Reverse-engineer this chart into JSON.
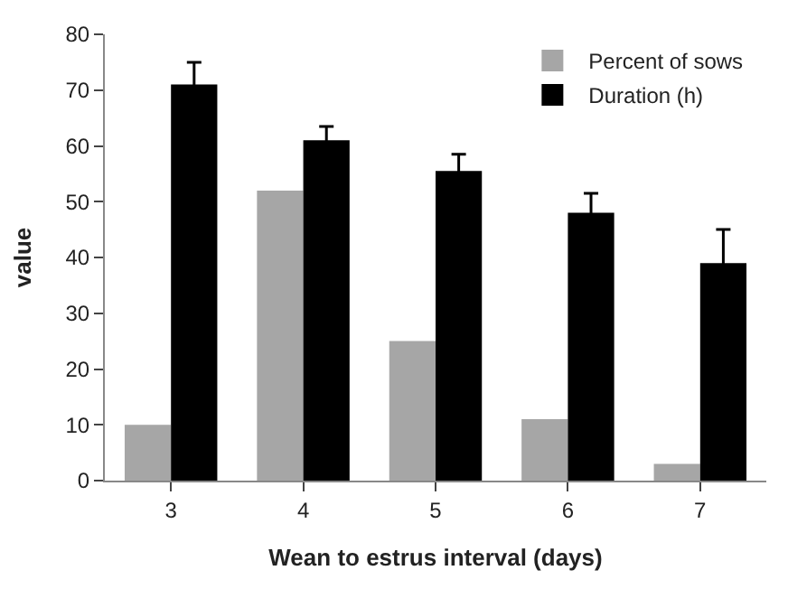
{
  "chart_data": {
    "type": "bar",
    "xlabel": "Wean to estrus interval (days)",
    "ylabel": "value",
    "categories": [
      "3",
      "4",
      "5",
      "6",
      "7"
    ],
    "series": [
      {
        "name": "Percent of sows",
        "color": "#a6a6a6",
        "values": [
          10,
          52,
          25,
          11,
          3
        ]
      },
      {
        "name": "Duration (h)",
        "color": "#000000",
        "values": [
          71,
          61,
          55.5,
          48,
          39
        ],
        "errors": [
          4,
          2.5,
          3,
          3.5,
          6
        ]
      }
    ],
    "ylim": [
      0,
      80
    ],
    "yticks": [
      0,
      10,
      20,
      30,
      40,
      50,
      60,
      70,
      80
    ],
    "grid": false,
    "legend": "top right"
  }
}
